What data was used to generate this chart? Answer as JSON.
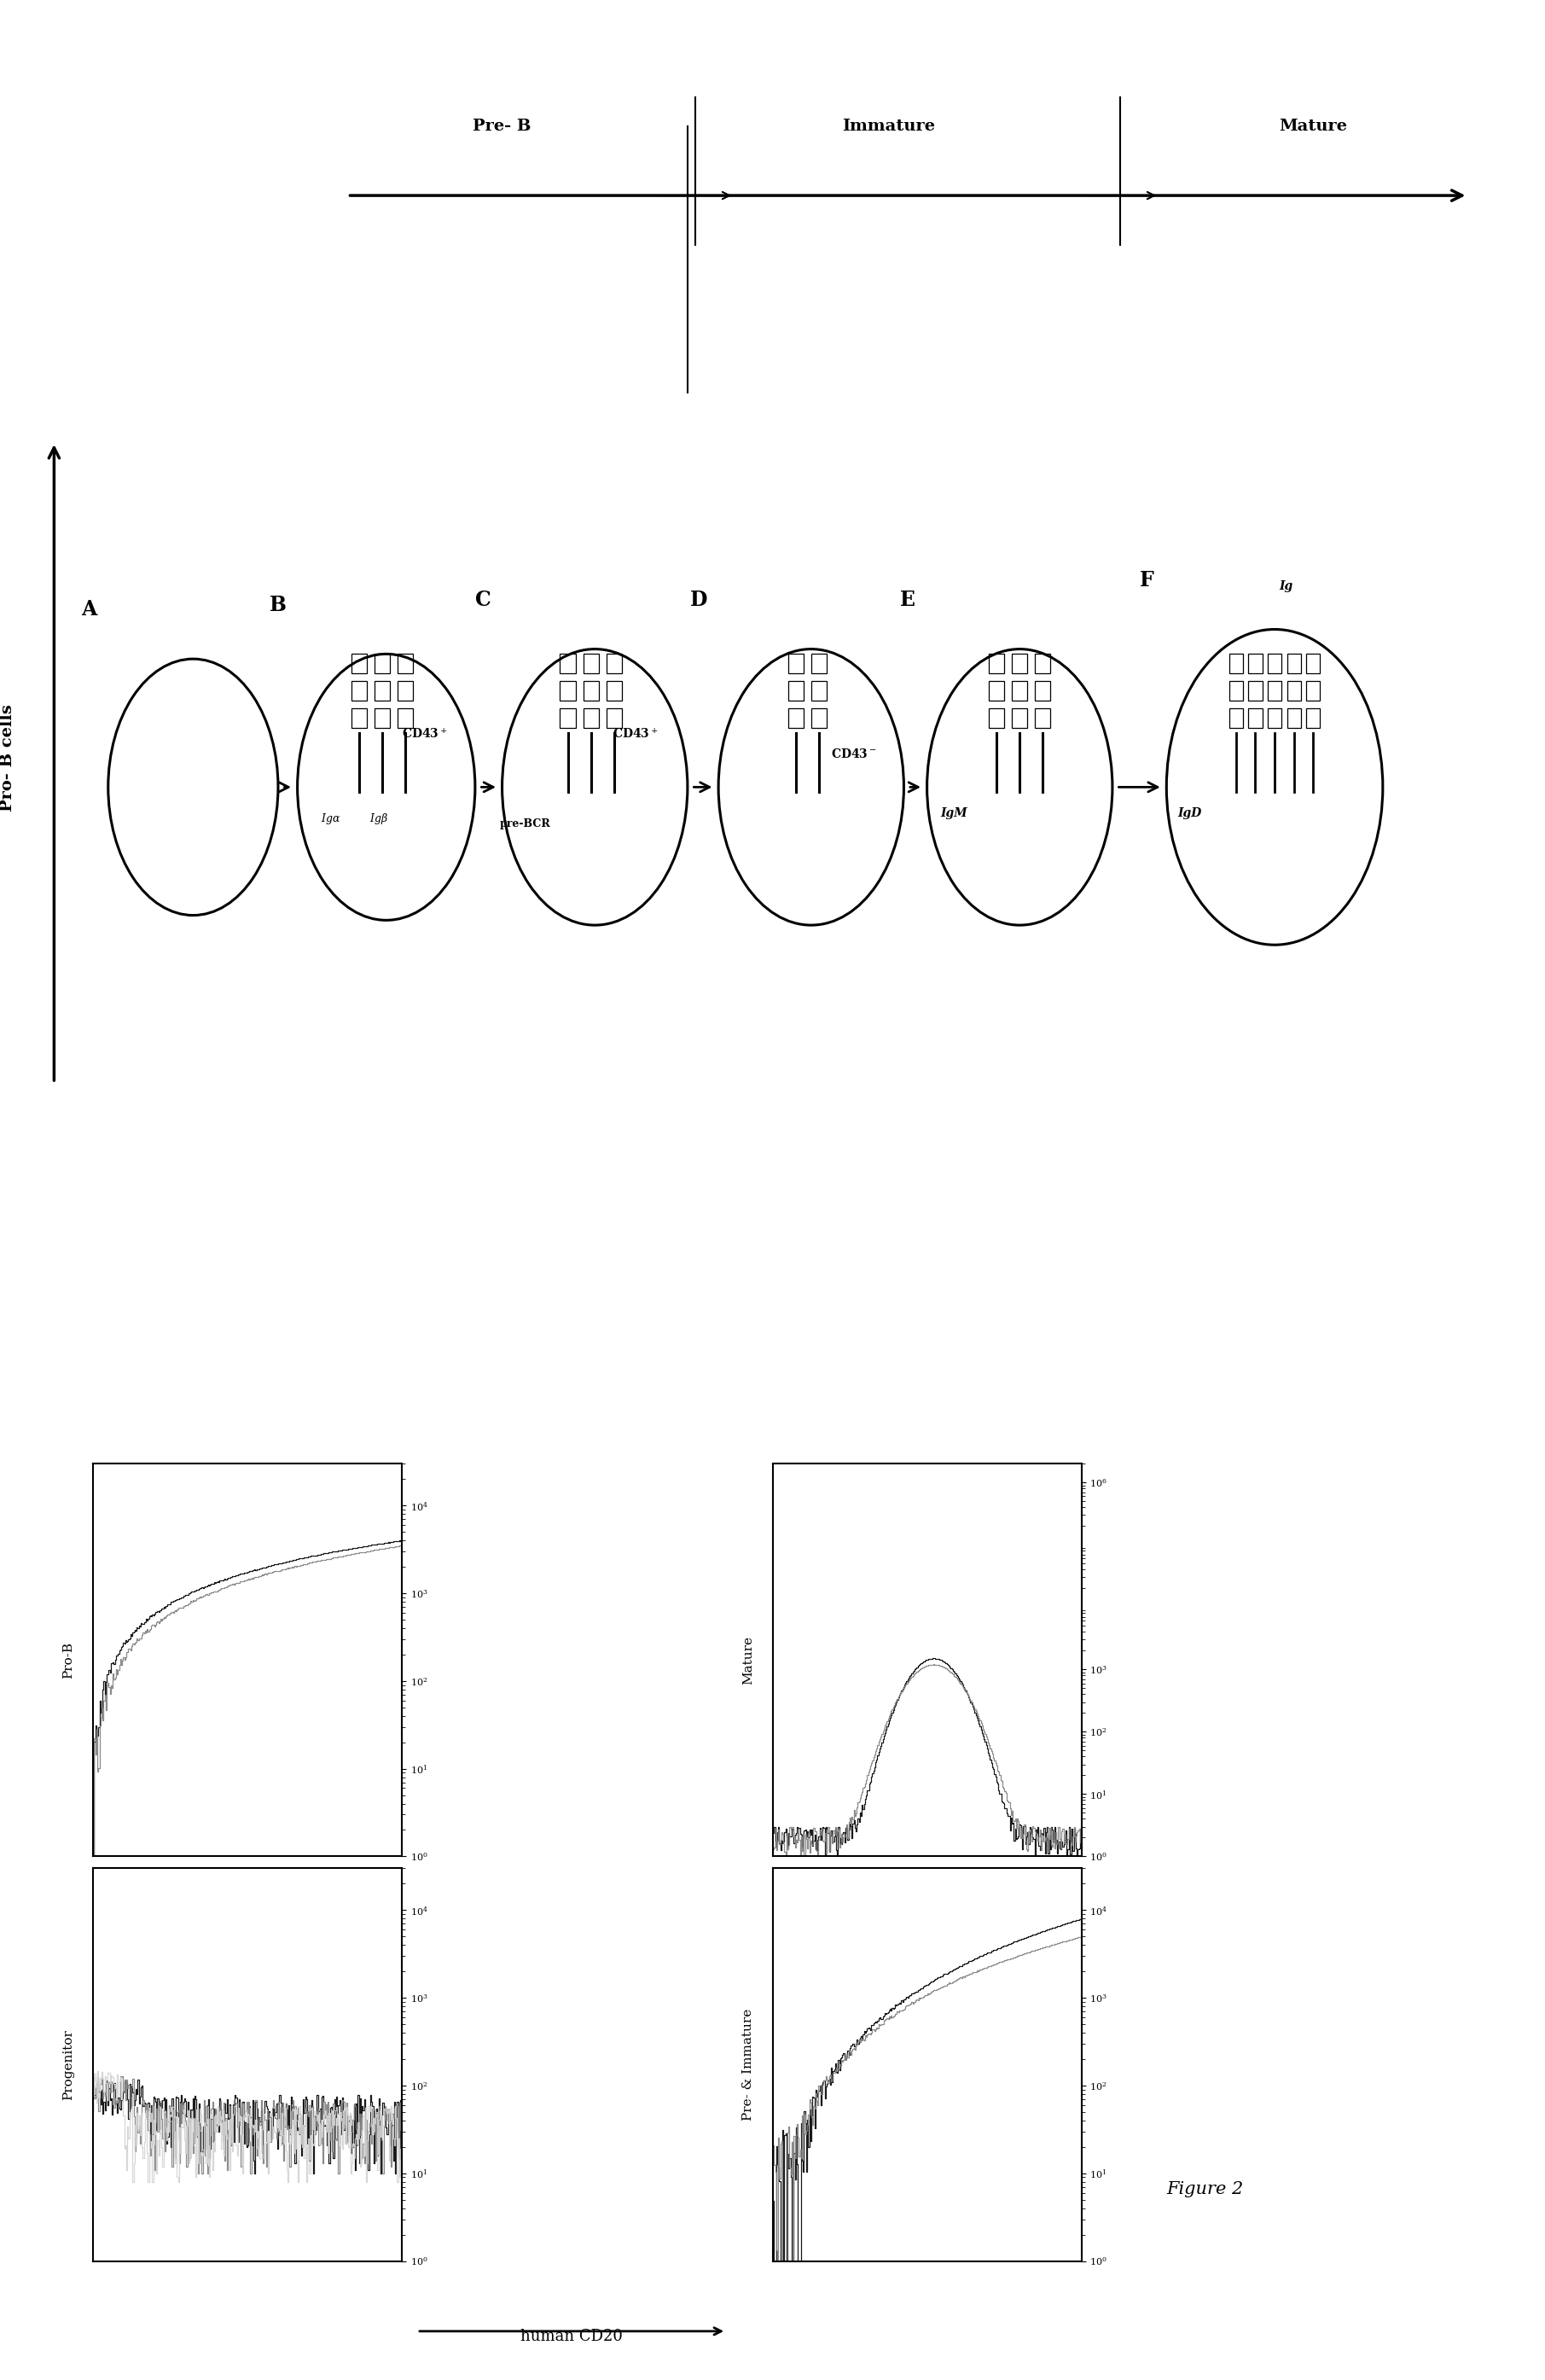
{
  "figure_label": "Figure 2",
  "background_color": "#ffffff",
  "cell_stages": [
    "A",
    "B",
    "C",
    "D",
    "E",
    "F"
  ],
  "left_arrow_label": "Pro- B cells",
  "top_arrow_sections": [
    "Pre- B",
    "Immature",
    "Mature"
  ],
  "cell_labels": {
    "B": {
      "cd43": "CD43⁺",
      "iga": "Igα",
      "igb": "Igβ"
    },
    "C": {
      "cd43": "CD43⁺",
      "prebcr": "pre-BCR"
    },
    "D": {
      "cd43": "CD43⁻"
    },
    "E": {
      "igm": "IgM"
    },
    "F": {
      "igd": "IgD",
      "ig": "Ig"
    }
  },
  "flow_panels": [
    {
      "label": "Progenitor",
      "position": "bottom_left_1"
    },
    {
      "label": "Pro-B",
      "position": "bottom_left_2"
    },
    {
      "label": "Pre- & Immature",
      "position": "bottom_right_1"
    },
    {
      "label": "Mature",
      "position": "bottom_right_2"
    }
  ],
  "x_axis_label": "human CD20",
  "ytick_labels_normal": [
    "10⁰",
    "10¹",
    "10²",
    "10³",
    "10⁴"
  ],
  "ytick_labels_mature": [
    "10⁰",
    "10¹",
    "10²",
    "10³",
    "10⁶"
  ]
}
